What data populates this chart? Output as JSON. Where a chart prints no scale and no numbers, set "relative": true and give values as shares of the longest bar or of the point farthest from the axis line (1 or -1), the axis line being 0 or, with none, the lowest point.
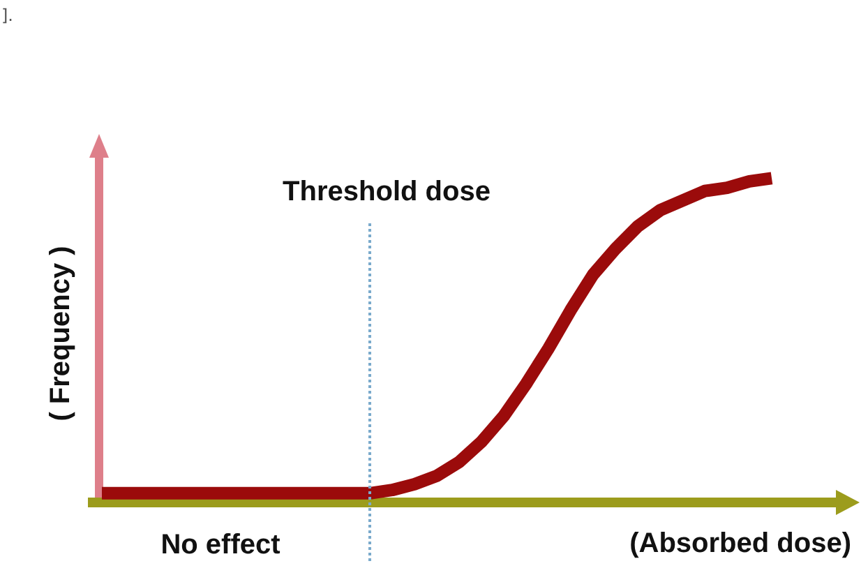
{
  "chart_data": {
    "type": "line",
    "relative": true,
    "xlabel": "(Absorbed dose)",
    "ylabel": "( Frequency )",
    "marker": "none",
    "line_style": "solid",
    "categories": [
      null,
      null,
      null,
      null,
      null,
      null,
      null,
      null,
      null,
      null,
      null,
      null,
      null,
      null,
      null,
      null,
      null,
      null,
      null,
      null,
      null,
      null,
      null,
      null,
      null,
      null,
      null,
      null,
      null,
      null,
      null
    ],
    "series": [
      {
        "color": "#9b0b0b",
        "values": [
          0.02,
          0.02,
          0.02,
          0.02,
          0.02,
          0.02,
          0.02,
          0.02,
          0.02,
          0.02,
          0.02,
          0.02,
          0.02,
          0.03,
          0.048,
          0.074,
          0.117,
          0.18,
          0.26,
          0.36,
          0.47,
          0.59,
          0.7,
          0.78,
          0.85,
          0.9,
          0.93,
          0.96,
          0.97,
          0.99,
          1
        ]
      }
    ],
    "annotations": [
      "Threshold dose",
      "No effect",
      "]."
    ]
  }
}
